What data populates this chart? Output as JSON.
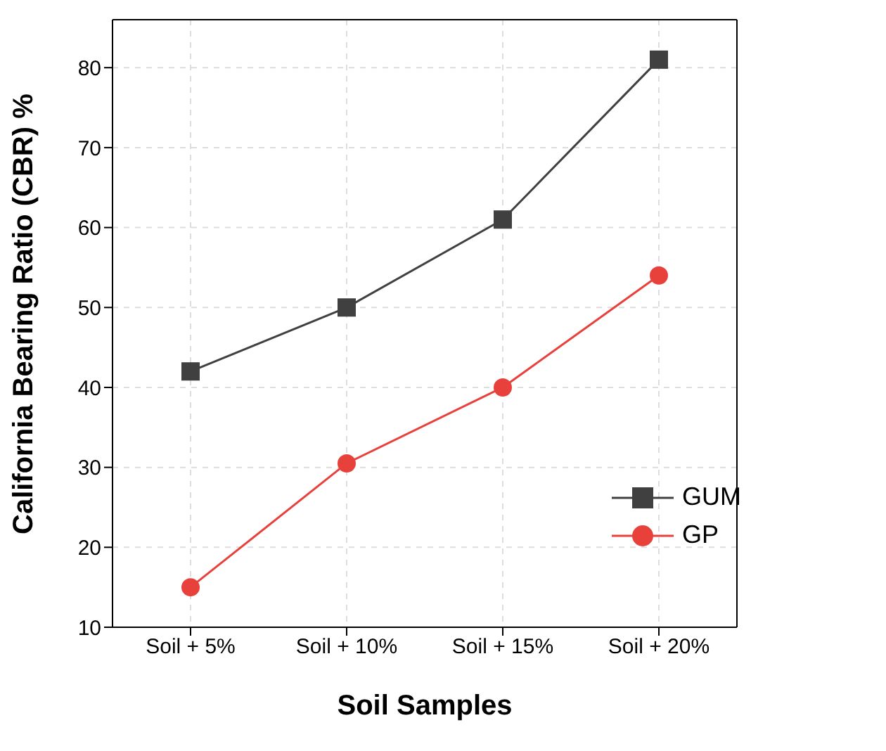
{
  "chart_data": {
    "type": "line",
    "xlabel": "Soil Samples",
    "ylabel": "California Bearing Ratio (CBR) %",
    "categories": [
      "Soil + 5%",
      "Soil + 10%",
      "Soil + 15%",
      "Soil + 20%"
    ],
    "series": [
      {
        "name": "GUM",
        "color": "#404040",
        "marker": "square",
        "values": [
          42,
          50,
          61,
          81
        ]
      },
      {
        "name": "GP",
        "color": "#e8413c",
        "marker": "circle",
        "values": [
          15,
          30.5,
          40,
          54
        ]
      }
    ],
    "ylim": [
      10,
      86
    ],
    "yticks": [
      10,
      20,
      30,
      40,
      50,
      60,
      70,
      80
    ],
    "grid": true,
    "legend": "bottom right",
    "line_style": "solid"
  }
}
